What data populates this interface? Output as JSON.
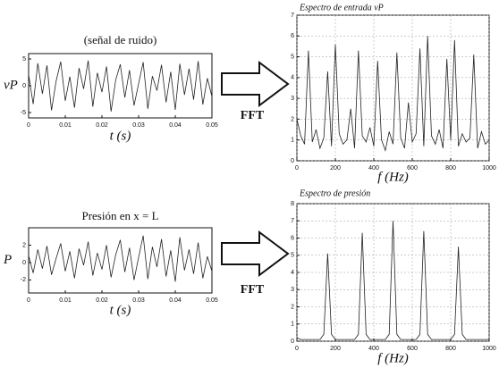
{
  "chart_data": [
    {
      "type": "line",
      "title": "(señal de ruido)",
      "xlabel": "t (s)",
      "ylabel": "vP",
      "color": "#222",
      "grid": false,
      "x": [
        0,
        0.00125,
        0.0025,
        0.00375,
        0.005,
        0.00625,
        0.0075,
        0.00875,
        0.01,
        0.01125,
        0.0125,
        0.01375,
        0.015,
        0.01625,
        0.0175,
        0.01875,
        0.02,
        0.02125,
        0.0225,
        0.02375,
        0.025,
        0.02625,
        0.0275,
        0.02875,
        0.03,
        0.03125,
        0.0325,
        0.03375,
        0.035,
        0.03625,
        0.0375,
        0.03875,
        0.04,
        0.04125,
        0.0425,
        0.04375,
        0.045,
        0.04625,
        0.0475,
        0.04875,
        0.05
      ],
      "values": [
        2.1,
        -3.4,
        4.2,
        -1.5,
        3.8,
        -4.6,
        0.9,
        4.5,
        -2.8,
        1.7,
        -4.1,
        3.3,
        -0.6,
        4.7,
        -3.9,
        2.4,
        -1.2,
        3.6,
        -4.8,
        1.1,
        4.0,
        -2.2,
        2.9,
        -3.7,
        0.4,
        4.4,
        -4.3,
        1.8,
        -0.9,
        3.9,
        -3.1,
        2.6,
        -4.5,
        4.1,
        -1.7,
        3.2,
        -2.6,
        4.6,
        -3.5,
        1.4,
        -2.0
      ],
      "xlim": [
        0,
        0.05
      ],
      "xticks": [
        0,
        0.01,
        0.02,
        0.03,
        0.04,
        0.05
      ],
      "ylim": [
        -6,
        6
      ],
      "yticks": [
        -5,
        0,
        5
      ]
    },
    {
      "type": "line",
      "title": "Espectro de entrada vP",
      "xlabel": "f (Hz)",
      "annotation": "FFT",
      "color": "#222",
      "grid": true,
      "x": [
        0,
        20,
        40,
        60,
        80,
        100,
        120,
        140,
        160,
        180,
        200,
        220,
        240,
        260,
        280,
        300,
        320,
        340,
        360,
        380,
        400,
        420,
        440,
        460,
        480,
        500,
        520,
        540,
        560,
        580,
        600,
        620,
        640,
        660,
        680,
        700,
        720,
        740,
        760,
        780,
        800,
        820,
        840,
        860,
        880,
        900,
        920,
        940,
        960,
        980,
        1000
      ],
      "values": [
        2.0,
        1.2,
        0.8,
        5.3,
        0.9,
        1.5,
        0.6,
        1.1,
        4.3,
        0.7,
        5.6,
        1.3,
        0.8,
        1.0,
        2.5,
        0.6,
        5.3,
        1.2,
        0.9,
        1.6,
        0.7,
        4.8,
        1.0,
        0.5,
        1.4,
        0.8,
        5.2,
        1.1,
        0.6,
        2.8,
        0.9,
        1.3,
        5.4,
        0.7,
        6.0,
        1.2,
        0.8,
        1.5,
        0.6,
        4.9,
        1.0,
        5.8,
        0.7,
        1.3,
        0.9,
        1.1,
        5.1,
        0.6,
        1.4,
        0.8,
        1.0
      ],
      "xlim": [
        0,
        1000
      ],
      "xticks": [
        0,
        200,
        400,
        600,
        800,
        1000
      ],
      "ylim": [
        0,
        7
      ],
      "yticks": [
        0,
        1,
        2,
        3,
        4,
        5,
        6,
        7
      ]
    },
    {
      "type": "line",
      "title": "Presión en x = L",
      "xlabel": "t (s)",
      "ylabel": "P",
      "color": "#222",
      "grid": false,
      "x": [
        0,
        0.00125,
        0.0025,
        0.00375,
        0.005,
        0.00625,
        0.0075,
        0.00875,
        0.01,
        0.01125,
        0.0125,
        0.01375,
        0.015,
        0.01625,
        0.0175,
        0.01875,
        0.02,
        0.02125,
        0.0225,
        0.02375,
        0.025,
        0.02625,
        0.0275,
        0.02875,
        0.03,
        0.03125,
        0.0325,
        0.03375,
        0.035,
        0.03625,
        0.0375,
        0.03875,
        0.04,
        0.04125,
        0.0425,
        0.04375,
        0.045,
        0.04625,
        0.0475,
        0.04875,
        0.05
      ],
      "values": [
        0.8,
        -1.2,
        1.5,
        -0.7,
        1.9,
        -1.4,
        0.5,
        2.2,
        -1.0,
        1.3,
        -1.8,
        1.6,
        -0.3,
        2.4,
        -1.5,
        1.1,
        -0.8,
        2.0,
        -1.7,
        0.9,
        2.6,
        -1.1,
        1.7,
        -2.0,
        0.6,
        3.1,
        -1.9,
        1.8,
        -0.5,
        2.7,
        -1.6,
        1.4,
        -2.2,
        2.9,
        -0.9,
        1.5,
        -1.3,
        2.3,
        -1.8,
        0.7,
        -1.0
      ],
      "xlim": [
        0,
        0.05
      ],
      "xticks": [
        0,
        0.01,
        0.02,
        0.03,
        0.04,
        0.05
      ],
      "ylim": [
        -3.5,
        4
      ],
      "yticks": [
        -2,
        0,
        2
      ]
    },
    {
      "type": "line",
      "title": "Espectro de presión",
      "xlabel": "f (Hz)",
      "annotation": "FFT",
      "color": "#222",
      "grid": true,
      "x": [
        0,
        20,
        40,
        60,
        80,
        100,
        120,
        140,
        160,
        180,
        200,
        220,
        240,
        260,
        280,
        300,
        320,
        340,
        360,
        380,
        400,
        420,
        440,
        460,
        480,
        500,
        520,
        540,
        560,
        580,
        600,
        620,
        640,
        660,
        680,
        700,
        720,
        740,
        760,
        780,
        800,
        820,
        840,
        860,
        880,
        900,
        920,
        940,
        960,
        980,
        1000
      ],
      "values": [
        0.2,
        0.1,
        0.1,
        0.1,
        0.1,
        0.1,
        0.1,
        0.4,
        5.1,
        0.4,
        0.1,
        0.1,
        0.1,
        0.1,
        0.1,
        0.1,
        0.4,
        6.3,
        0.4,
        0.1,
        0.1,
        0.1,
        0.1,
        0.1,
        0.4,
        7.0,
        0.4,
        0.1,
        0.1,
        0.1,
        0.1,
        0.1,
        0.4,
        6.4,
        0.4,
        0.1,
        0.1,
        0.1,
        0.1,
        0.1,
        0.1,
        0.4,
        5.5,
        0.4,
        0.1,
        0.1,
        0.1,
        0.1,
        0.1,
        0.1,
        0.1
      ],
      "xlim": [
        0,
        1000
      ],
      "xticks": [
        0,
        200,
        400,
        600,
        800,
        1000
      ],
      "ylim": [
        0,
        8
      ],
      "yticks": [
        0,
        1,
        2,
        3,
        4,
        5,
        6,
        7,
        8
      ]
    }
  ]
}
